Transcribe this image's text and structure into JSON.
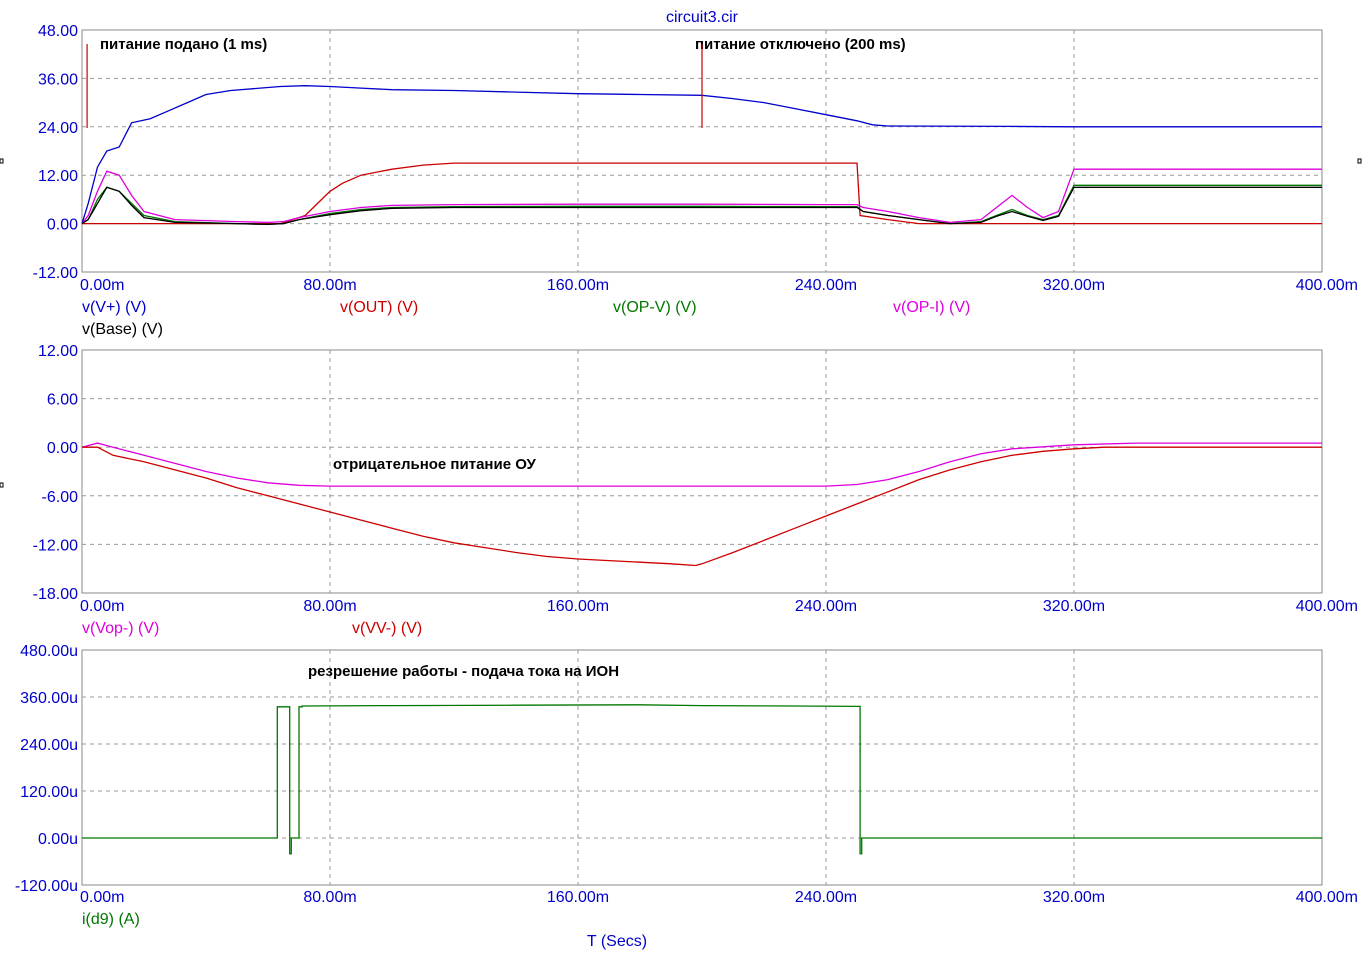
{
  "title": "circuit3.cir",
  "x_axis_label": "T (Secs)",
  "colors": {
    "blue": "#0000cc",
    "red": "#cc0000",
    "green": "#007700",
    "magenta": "#dd00dd",
    "black": "#000000"
  },
  "chart_data": [
    {
      "type": "line",
      "xlim": [
        0,
        400
      ],
      "ylim": [
        -12,
        48
      ],
      "x_ticks": [
        "0.00m",
        "80.00m",
        "160.00m",
        "240.00m",
        "320.00m",
        "400.00m"
      ],
      "y_ticks": [
        "48.00",
        "36.00",
        "24.00",
        "12.00",
        "0.00",
        "-12.00"
      ],
      "annotations": [
        {
          "text": "питание подано (1 ms)",
          "x": 1
        },
        {
          "text": "питание отключено (200 ms)",
          "x": 200
        }
      ],
      "legend": [
        "v(V+) (V)",
        "v(OUT) (V)",
        "v(OP-V) (V)",
        "v(OP-I) (V)",
        "v(Base) (V)"
      ],
      "series": [
        {
          "name": "v(V+) (V)",
          "color": "blue",
          "x": [
            0,
            2,
            5,
            8,
            12,
            16,
            22,
            28,
            34,
            40,
            48,
            56,
            64,
            72,
            80,
            90,
            100,
            120,
            140,
            160,
            180,
            200,
            210,
            220,
            230,
            240,
            250,
            255,
            260,
            300,
            320,
            340,
            360,
            380,
            400
          ],
          "y": [
            0,
            5,
            14,
            18,
            19,
            25,
            26,
            28,
            30,
            32,
            33,
            33.5,
            34,
            34.2,
            34,
            33.6,
            33.2,
            33,
            32.6,
            32.2,
            32,
            31.8,
            31,
            30,
            28.5,
            27,
            25.5,
            24.5,
            24.2,
            24.1,
            24,
            24,
            24,
            24,
            24
          ]
        },
        {
          "name": "v(OUT) (V)",
          "color": "red",
          "x": [
            0,
            60,
            64,
            68,
            72,
            76,
            80,
            84,
            90,
            100,
            110,
            120,
            130,
            140,
            160,
            180,
            200,
            220,
            240,
            250,
            251,
            260,
            270,
            280,
            290,
            300,
            320,
            340,
            360,
            380,
            400
          ],
          "y": [
            0,
            0,
            0,
            1,
            2,
            5,
            8,
            10,
            12,
            13.5,
            14.5,
            15,
            15,
            15,
            15,
            15,
            15,
            15,
            15,
            15,
            2,
            1,
            0,
            0,
            0,
            0,
            0,
            0,
            0,
            0,
            0
          ]
        },
        {
          "name": "v(OP-V) (V)",
          "color": "green",
          "x": [
            0,
            2,
            5,
            8,
            12,
            16,
            20,
            30,
            50,
            60,
            65,
            70,
            80,
            90,
            100,
            120,
            160,
            200,
            240,
            250,
            252,
            260,
            270,
            280,
            290,
            295,
            300,
            305,
            310,
            315,
            320,
            340,
            360,
            380,
            400
          ],
          "y": [
            0,
            1,
            6,
            9,
            8,
            5,
            2,
            0.5,
            0,
            -0.2,
            0,
            1,
            2.5,
            3.5,
            4,
            4.2,
            4.3,
            4.3,
            4.2,
            4.2,
            3,
            2,
            1,
            0,
            0.5,
            2,
            3.5,
            2,
            1,
            2,
            9.5,
            9.5,
            9.5,
            9.5,
            9.5
          ]
        },
        {
          "name": "v(OP-I) (V)",
          "color": "magenta",
          "x": [
            0,
            2,
            5,
            8,
            12,
            16,
            20,
            30,
            50,
            60,
            65,
            70,
            80,
            90,
            100,
            120,
            160,
            200,
            240,
            250,
            252,
            260,
            270,
            280,
            290,
            295,
            300,
            305,
            310,
            315,
            320,
            340,
            360,
            380,
            400
          ],
          "y": [
            0,
            2,
            8,
            13,
            12,
            7,
            3,
            1,
            0.5,
            0.3,
            0.5,
            1.5,
            3,
            4,
            4.5,
            4.7,
            4.8,
            4.8,
            4.7,
            4.7,
            4,
            3,
            1.5,
            0.3,
            1,
            4,
            7,
            4,
            1.5,
            3,
            13.5,
            13.5,
            13.5,
            13.5,
            13.5
          ]
        },
        {
          "name": "v(Base) (V)",
          "color": "black",
          "x": [
            0,
            2,
            5,
            8,
            12,
            16,
            20,
            30,
            50,
            60,
            65,
            70,
            80,
            90,
            100,
            120,
            160,
            200,
            240,
            250,
            252,
            260,
            270,
            280,
            290,
            295,
            300,
            305,
            310,
            315,
            320,
            340,
            360,
            380,
            400
          ],
          "y": [
            0,
            1,
            5,
            9,
            8,
            4.5,
            1.5,
            0.3,
            0,
            -0.2,
            0,
            1,
            2.2,
            3.2,
            3.8,
            4,
            4,
            4,
            4,
            4,
            3,
            2,
            1,
            0,
            0.3,
            1.8,
            3,
            1.8,
            0.8,
            1.8,
            9,
            9,
            9,
            9,
            9
          ]
        }
      ]
    },
    {
      "type": "line",
      "xlim": [
        0,
        400
      ],
      "ylim": [
        -18,
        12
      ],
      "x_ticks": [
        "0.00m",
        "80.00m",
        "160.00m",
        "240.00m",
        "320.00m",
        "400.00m"
      ],
      "y_ticks": [
        "12.00",
        "6.00",
        "0.00",
        "-6.00",
        "-12.00",
        "-18.00"
      ],
      "annotations": [
        {
          "text": "отрицательное питание ОУ",
          "x": 80
        }
      ],
      "legend": [
        "v(Vop-) (V)",
        "v(VV-) (V)"
      ],
      "series": [
        {
          "name": "v(Vop-) (V)",
          "color": "magenta",
          "x": [
            0,
            5,
            10,
            20,
            30,
            40,
            50,
            60,
            70,
            80,
            90,
            100,
            120,
            160,
            200,
            240,
            250,
            260,
            270,
            280,
            290,
            300,
            320,
            340,
            360,
            380,
            400
          ],
          "y": [
            0,
            0.5,
            0,
            -1,
            -2,
            -3,
            -3.8,
            -4.4,
            -4.7,
            -4.8,
            -4.8,
            -4.8,
            -4.8,
            -4.8,
            -4.8,
            -4.8,
            -4.6,
            -4,
            -3,
            -1.8,
            -0.8,
            -0.2,
            0.3,
            0.5,
            0.5,
            0.5,
            0.5
          ]
        },
        {
          "name": "v(VV-) (V)",
          "color": "red",
          "x": [
            0,
            5,
            10,
            20,
            30,
            40,
            50,
            60,
            70,
            80,
            90,
            100,
            110,
            120,
            130,
            140,
            150,
            160,
            170,
            180,
            190,
            198,
            200,
            210,
            220,
            230,
            240,
            250,
            260,
            270,
            280,
            290,
            300,
            310,
            320,
            330,
            340,
            360,
            380,
            400
          ],
          "y": [
            0,
            0,
            -1,
            -1.8,
            -2.8,
            -3.8,
            -5,
            -6,
            -7,
            -8,
            -9,
            -10,
            -11,
            -11.8,
            -12.4,
            -13,
            -13.5,
            -13.8,
            -14,
            -14.2,
            -14.4,
            -14.6,
            -14.4,
            -13,
            -11.5,
            -10,
            -8.5,
            -7,
            -5.5,
            -4,
            -2.8,
            -1.8,
            -1,
            -0.5,
            -0.2,
            0,
            0,
            0,
            0,
            0
          ]
        }
      ]
    },
    {
      "type": "line",
      "xlim": [
        0,
        400
      ],
      "ylim": [
        -120,
        480
      ],
      "x_ticks": [
        "0.00m",
        "80.00m",
        "160.00m",
        "240.00m",
        "320.00m",
        "400.00m"
      ],
      "y_ticks": [
        "480.00u",
        "360.00u",
        "240.00u",
        "120.00u",
        "0.00u",
        "-120.00u"
      ],
      "annotations": [
        {
          "text": "резрешение работы - подача тока на ИОН",
          "x": 73
        }
      ],
      "legend": [
        "i(d9) (A)"
      ],
      "series": [
        {
          "name": "i(d9) (A)",
          "color": "green",
          "x": [
            0,
            63,
            63,
            67,
            67,
            67.5,
            67.5,
            68,
            68,
            70,
            70,
            71,
            71,
            100,
            140,
            180,
            200,
            230,
            250,
            251,
            251,
            251.5,
            251.5,
            300,
            400
          ],
          "y": [
            0,
            0,
            335,
            335,
            -40,
            -40,
            0,
            0,
            0,
            0,
            335,
            335,
            337,
            338,
            339,
            340,
            338,
            337,
            336,
            336,
            -40,
            -40,
            0,
            0,
            0
          ]
        }
      ]
    }
  ]
}
